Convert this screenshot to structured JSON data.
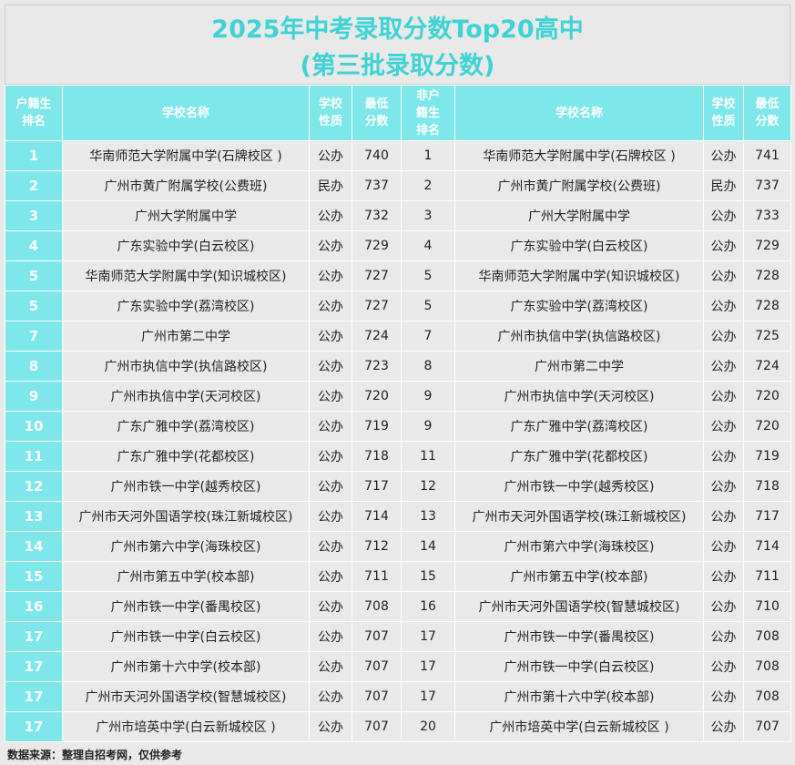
{
  "title": {
    "line1": "2025年中考录取分数Top20高中",
    "line2": "(第三批录取分数)"
  },
  "headers": {
    "rank_local": [
      "户籍生",
      "排名"
    ],
    "school_local": "学校名称",
    "type_local": [
      "学校",
      "性质"
    ],
    "score_local": [
      "最低",
      "分数"
    ],
    "rank_nonlocal": [
      "非户",
      "籍生",
      "排名"
    ],
    "school_nonlocal": "学校名称",
    "type_nonlocal": [
      "学校",
      "性质"
    ],
    "score_nonlocal": [
      "最低",
      "分数"
    ]
  },
  "rows": [
    [
      "1",
      "华南师范大学附属中学(石牌校区 )",
      "公办",
      "740",
      "1",
      "华南师范大学附属中学(石牌校区 )",
      "公办",
      "741"
    ],
    [
      "2",
      "广州市黄广附属学校(公费班)",
      "民办",
      "737",
      "2",
      "广州市黄广附属学校(公费班)",
      "民办",
      "737"
    ],
    [
      "3",
      "广州大学附属中学",
      "公办",
      "732",
      "3",
      "广州大学附属中学",
      "公办",
      "733"
    ],
    [
      "4",
      "广东实验中学(白云校区)",
      "公办",
      "729",
      "4",
      "广东实验中学(白云校区)",
      "公办",
      "729"
    ],
    [
      "5",
      "华南师范大学附属中学(知识城校区)",
      "公办",
      "727",
      "5",
      "华南师范大学附属中学(知识城校区)",
      "公办",
      "728"
    ],
    [
      "5",
      "广东实验中学(荔湾校区)",
      "公办",
      "727",
      "5",
      "广东实验中学(荔湾校区)",
      "公办",
      "728"
    ],
    [
      "7",
      "广州市第二中学",
      "公办",
      "724",
      "7",
      "广州市执信中学(执信路校区)",
      "公办",
      "725"
    ],
    [
      "8",
      "广州市执信中学(执信路校区)",
      "公办",
      "723",
      "8",
      "广州市第二中学",
      "公办",
      "724"
    ],
    [
      "9",
      "广州市执信中学(天河校区)",
      "公办",
      "720",
      "9",
      "广州市执信中学(天河校区)",
      "公办",
      "720"
    ],
    [
      "10",
      "广东广雅中学(荔湾校区)",
      "公办",
      "719",
      "9",
      "广东广雅中学(荔湾校区)",
      "公办",
      "720"
    ],
    [
      "11",
      "广东广雅中学(花都校区)",
      "公办",
      "718",
      "11",
      "广东广雅中学(花都校区)",
      "公办",
      "719"
    ],
    [
      "12",
      "广州市铁一中学(越秀校区)",
      "公办",
      "717",
      "12",
      "广州市铁一中学(越秀校区)",
      "公办",
      "718"
    ],
    [
      "13",
      "广州市天河外国语学校(珠江新城校区)",
      "公办",
      "714",
      "13",
      "广州市天河外国语学校(珠江新城校区)",
      "公办",
      "717"
    ],
    [
      "14",
      "广州市第六中学(海珠校区)",
      "公办",
      "712",
      "14",
      "广州市第六中学(海珠校区)",
      "公办",
      "714"
    ],
    [
      "15",
      "广州市第五中学(校本部)",
      "公办",
      "711",
      "15",
      "广州市第五中学(校本部)",
      "公办",
      "711"
    ],
    [
      "16",
      "广州市铁一中学(番禺校区)",
      "公办",
      "708",
      "16",
      "广州市天河外国语学校(智慧城校区)",
      "公办",
      "710"
    ],
    [
      "17",
      "广州市铁一中学(白云校区)",
      "公办",
      "707",
      "17",
      "广州市铁一中学(番禺校区)",
      "公办",
      "708"
    ],
    [
      "17",
      "广州市第十六中学(校本部)",
      "公办",
      "707",
      "17",
      "广州市铁一中学(白云校区)",
      "公办",
      "708"
    ],
    [
      "17",
      "广州市天河外国语学校(智慧城校区)",
      "公办",
      "707",
      "17",
      "广州市第十六中学(校本部)",
      "公办",
      "708"
    ],
    [
      "17",
      "广州市培英中学(白云新城校区 )",
      "公办",
      "707",
      "20",
      "广州市培英中学(白云新城校区 )",
      "公办",
      "707"
    ]
  ],
  "footer": "数据来源：整理自招考网，仅供参考",
  "colors": {
    "accent": "#3fd3d5",
    "header_bg": "#7de7e9",
    "cell_bg": "#e9e9e9"
  }
}
